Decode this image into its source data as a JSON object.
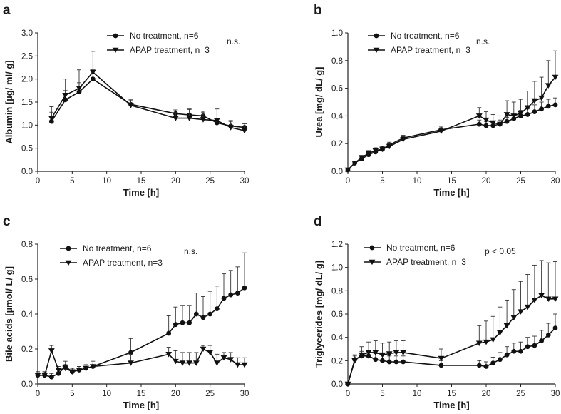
{
  "chart_data": [
    {
      "type": "line",
      "panel": "a",
      "xlabel": "Time [h]",
      "ylabel": "Albumin [µg/ ml/ g]",
      "xlim": [
        0,
        30
      ],
      "ylim": [
        0,
        3.0
      ],
      "xticks": [
        0,
        5,
        10,
        15,
        20,
        25,
        30
      ],
      "yticks": [
        0,
        0.5,
        1.0,
        1.5,
        2.0,
        2.5,
        3.0
      ],
      "ytick_labels": [
        "0.0",
        "0.5",
        "1.0",
        "1.5",
        "2.0",
        "2.5",
        "3.0"
      ],
      "grid": false,
      "legend_position": "top",
      "annotation": "n.s.",
      "series": [
        {
          "name": "No treatment, n=6",
          "marker": "circle",
          "x": [
            2,
            4,
            6,
            8,
            13.5,
            20,
            22,
            24,
            26,
            28,
            30
          ],
          "y": [
            1.08,
            1.55,
            1.72,
            2.0,
            1.45,
            1.25,
            1.22,
            1.2,
            1.05,
            0.98,
            0.95
          ],
          "err": [
            0.2,
            0.2,
            0.2,
            0.2,
            0.1,
            0.08,
            0.12,
            0.1,
            0.1,
            0.1,
            0.08
          ]
        },
        {
          "name": "APAP treatment, n=3",
          "marker": "triangle-down",
          "x": [
            2,
            4,
            6,
            8,
            13.5,
            20,
            22,
            24,
            26,
            28,
            30
          ],
          "y": [
            1.15,
            1.65,
            1.8,
            2.15,
            1.43,
            1.15,
            1.15,
            1.12,
            1.1,
            0.95,
            0.88
          ],
          "err": [
            0.25,
            0.35,
            0.4,
            0.45,
            0.1,
            0.12,
            0.2,
            0.15,
            0.25,
            0.15,
            0.1
          ]
        }
      ]
    },
    {
      "type": "line",
      "panel": "b",
      "xlabel": "Time [h]",
      "ylabel": "Urea [mg/ dL/ g]",
      "xlim": [
        0,
        30
      ],
      "ylim": [
        0,
        1.0
      ],
      "xticks": [
        0,
        5,
        10,
        15,
        20,
        25,
        30
      ],
      "yticks": [
        0,
        0.2,
        0.4,
        0.6,
        0.8,
        1.0
      ],
      "ytick_labels": [
        "0.0",
        "0.2",
        "0.4",
        "0.6",
        "0.8",
        "1.0"
      ],
      "grid": false,
      "legend_position": "top",
      "annotation": "n.s.",
      "series": [
        {
          "name": "No treatment, n=6",
          "marker": "circle",
          "x": [
            0,
            1,
            2,
            3,
            4,
            5,
            6,
            8,
            13.5,
            19,
            20,
            21,
            22,
            23,
            24,
            25,
            26,
            27,
            28,
            29,
            30
          ],
          "y": [
            0.01,
            0.06,
            0.09,
            0.12,
            0.14,
            0.16,
            0.19,
            0.24,
            0.3,
            0.34,
            0.33,
            0.33,
            0.34,
            0.36,
            0.38,
            0.4,
            0.41,
            0.43,
            0.45,
            0.47,
            0.48
          ],
          "err": [
            0,
            0.01,
            0.01,
            0.015,
            0.015,
            0.02,
            0.02,
            0.02,
            0.02,
            0.03,
            0.03,
            0.03,
            0.03,
            0.03,
            0.04,
            0.04,
            0.04,
            0.05,
            0.05,
            0.05,
            0.05
          ]
        },
        {
          "name": "APAP treatment, n=3",
          "marker": "triangle-down",
          "x": [
            0,
            1,
            2,
            3,
            4,
            5,
            6,
            8,
            13.5,
            19,
            20,
            21,
            22,
            23,
            24,
            25,
            26,
            27,
            28,
            29,
            30
          ],
          "y": [
            0.01,
            0.06,
            0.1,
            0.13,
            0.15,
            0.16,
            0.18,
            0.23,
            0.29,
            0.4,
            0.37,
            0.35,
            0.34,
            0.41,
            0.4,
            0.42,
            0.46,
            0.51,
            0.53,
            0.62,
            0.68
          ],
          "err": [
            0,
            0.01,
            0.01,
            0.02,
            0.02,
            0.02,
            0.02,
            0.02,
            0.02,
            0.06,
            0.06,
            0.06,
            0.06,
            0.1,
            0.1,
            0.1,
            0.12,
            0.14,
            0.15,
            0.18,
            0.19
          ]
        }
      ]
    },
    {
      "type": "line",
      "panel": "c",
      "xlabel": "Time [h]",
      "ylabel": "Bile acids [µmol/ L/ g]",
      "xlim": [
        0,
        30
      ],
      "ylim": [
        0,
        0.8
      ],
      "xticks": [
        0,
        5,
        10,
        15,
        20,
        25,
        30
      ],
      "yticks": [
        0,
        0.2,
        0.4,
        0.6,
        0.8
      ],
      "ytick_labels": [
        "0.0",
        "0.2",
        "0.4",
        "0.6",
        "0.8"
      ],
      "grid": false,
      "legend_position": "top",
      "annotation": "n.s.",
      "series": [
        {
          "name": "No treatment, n=6",
          "marker": "circle",
          "x": [
            0,
            1,
            2,
            3,
            4,
            5,
            6,
            7,
            8,
            13.5,
            19,
            20,
            21,
            22,
            23,
            24,
            25,
            26,
            27,
            28,
            29,
            30
          ],
          "y": [
            0.05,
            0.05,
            0.04,
            0.06,
            0.1,
            0.07,
            0.08,
            0.09,
            0.1,
            0.18,
            0.29,
            0.34,
            0.35,
            0.35,
            0.4,
            0.38,
            0.4,
            0.43,
            0.49,
            0.51,
            0.52,
            0.55
          ],
          "err": [
            0.02,
            0.02,
            0.02,
            0.02,
            0.03,
            0.02,
            0.02,
            0.02,
            0.03,
            0.08,
            0.1,
            0.1,
            0.1,
            0.1,
            0.12,
            0.12,
            0.13,
            0.13,
            0.14,
            0.14,
            0.15,
            0.2
          ]
        },
        {
          "name": "APAP treatment, n=3",
          "marker": "triangle-down",
          "x": [
            0,
            1,
            2,
            3,
            4,
            5,
            6,
            7,
            8,
            13.5,
            19,
            20,
            21,
            22,
            23,
            24,
            25,
            26,
            27,
            28,
            29,
            30
          ],
          "y": [
            0.05,
            0.05,
            0.19,
            0.08,
            0.09,
            0.07,
            0.08,
            0.09,
            0.1,
            0.12,
            0.17,
            0.13,
            0.12,
            0.12,
            0.12,
            0.2,
            0.18,
            0.12,
            0.15,
            0.14,
            0.11,
            0.11
          ],
          "err": [
            0.02,
            0.02,
            0.03,
            0.02,
            0.02,
            0.02,
            0.02,
            0.02,
            0.02,
            0.05,
            0.04,
            0.06,
            0.06,
            0.06,
            0.06,
            0.02,
            0.04,
            0.05,
            0.03,
            0.04,
            0.04,
            0.04
          ]
        }
      ]
    },
    {
      "type": "line",
      "panel": "d",
      "xlabel": "Time [h]",
      "ylabel": "Triglycerides [mg/ dL/ g]",
      "xlim": [
        0,
        30
      ],
      "ylim": [
        0,
        1.2
      ],
      "xticks": [
        0,
        5,
        10,
        15,
        20,
        25,
        30
      ],
      "yticks": [
        0,
        0.2,
        0.4,
        0.6,
        0.8,
        1.0,
        1.2
      ],
      "ytick_labels": [
        "0.0",
        "0.2",
        "0.4",
        "0.6",
        "0.8",
        "1.0",
        "1.2"
      ],
      "grid": false,
      "legend_position": "top",
      "annotation": "p < 0.05",
      "series": [
        {
          "name": "No treatment, n=6",
          "marker": "circle",
          "x": [
            0,
            1,
            2,
            3,
            4,
            5,
            6,
            7,
            8,
            13.5,
            19,
            20,
            21,
            22,
            23,
            24,
            25,
            26,
            27,
            28,
            29,
            30
          ],
          "y": [
            0.0,
            0.21,
            0.24,
            0.24,
            0.21,
            0.2,
            0.19,
            0.19,
            0.19,
            0.16,
            0.16,
            0.15,
            0.18,
            0.21,
            0.25,
            0.28,
            0.28,
            0.32,
            0.33,
            0.37,
            0.42,
            0.48
          ],
          "err": [
            0.0,
            0.03,
            0.04,
            0.05,
            0.05,
            0.05,
            0.05,
            0.05,
            0.05,
            0.04,
            0.04,
            0.04,
            0.05,
            0.06,
            0.07,
            0.07,
            0.08,
            0.08,
            0.08,
            0.09,
            0.1,
            0.12
          ]
        },
        {
          "name": "APAP treatment, n=3",
          "marker": "triangle-down",
          "x": [
            0,
            1,
            2,
            3,
            4,
            5,
            6,
            7,
            8,
            13.5,
            19,
            20,
            21,
            22,
            23,
            24,
            25,
            26,
            27,
            28,
            29,
            30
          ],
          "y": [
            0.0,
            0.2,
            0.25,
            0.27,
            0.27,
            0.25,
            0.26,
            0.27,
            0.27,
            0.22,
            0.35,
            0.36,
            0.38,
            0.44,
            0.5,
            0.57,
            0.62,
            0.66,
            0.72,
            0.76,
            0.73,
            0.73
          ],
          "err": [
            0.0,
            0.05,
            0.07,
            0.09,
            0.1,
            0.1,
            0.1,
            0.1,
            0.1,
            0.08,
            0.15,
            0.18,
            0.2,
            0.22,
            0.22,
            0.24,
            0.26,
            0.28,
            0.3,
            0.3,
            0.31,
            0.32
          ]
        }
      ]
    }
  ]
}
